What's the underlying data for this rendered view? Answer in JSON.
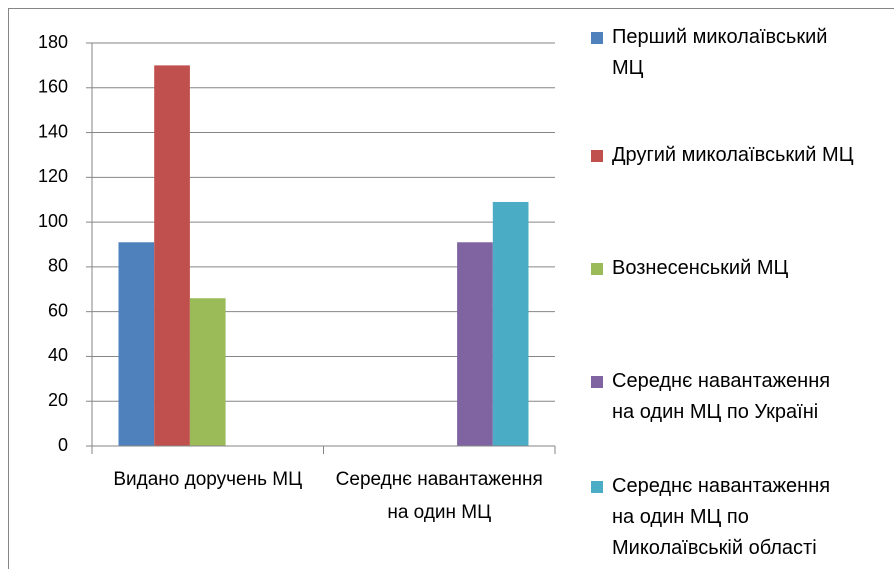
{
  "chart_data": {
    "type": "bar",
    "categories": [
      "Видано доручень МЦ",
      "Середнє навантаження на один МЦ"
    ],
    "series": [
      {
        "name": "Перший миколаївський МЦ",
        "color": "#4f81bd",
        "values": [
          91,
          null
        ]
      },
      {
        "name": "Другий миколаївський МЦ",
        "color": "#c0504d",
        "values": [
          170,
          null
        ]
      },
      {
        "name": "Вознесенський МЦ",
        "color": "#9bbb59",
        "values": [
          66,
          null
        ]
      },
      {
        "name": "Середнє навантаження на один МЦ по Україні",
        "color": "#8064a2",
        "values": [
          null,
          91
        ]
      },
      {
        "name": "Середнє навантаження на один МЦ по Миколаївській області",
        "color": "#4bacc6",
        "values": [
          null,
          109
        ]
      }
    ],
    "ylim": [
      0,
      180
    ],
    "yticks": [
      0,
      20,
      40,
      60,
      80,
      100,
      120,
      140,
      160,
      180
    ],
    "grid": true,
    "legend": "right"
  }
}
